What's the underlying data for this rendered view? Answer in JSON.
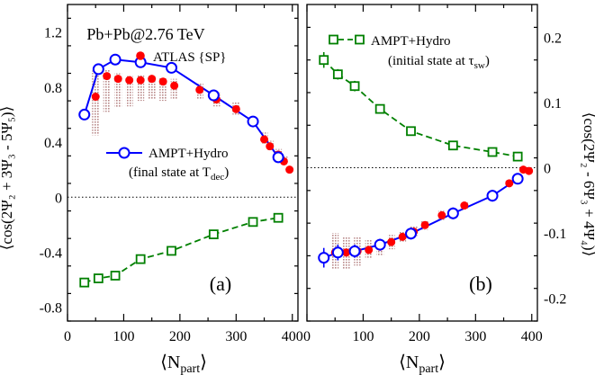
{
  "x_tick_labels": [
    "0",
    "100",
    "200",
    "300",
    "400"
  ],
  "colors": {
    "atlas": "#ff0000",
    "final": "#0000ff",
    "initial": "#008000",
    "band": "#b98a8a"
  },
  "chart_data": [
    {
      "type": "scatter",
      "panel_label": "(a)",
      "system": "Pb+Pb@2.76 TeV",
      "xlabel": "⟨N",
      "xlabel_sub": "part",
      "xlabel_end": "⟩",
      "ylabel": "⟨cos(2Ψ₂ + 3Ψ₃ - 5Ψ₅)⟩",
      "xlim": [
        0,
        410
      ],
      "ylim": [
        -0.9,
        1.4
      ],
      "y_ticks": [
        -0.8,
        -0.4,
        0,
        0.4,
        0.8,
        1.2
      ],
      "y_tick_labels": [
        "-0.8",
        "-0.4",
        "0",
        "0.4",
        "0.8",
        "1.2"
      ],
      "zero_line": true,
      "legend": [
        {
          "series": "atlas",
          "text": "ATLAS {SP}"
        },
        {
          "series": "final",
          "text": "AMPT+Hydro",
          "text2": "(final state at T",
          "text2_sub": "dec",
          "text2_end": ")"
        }
      ],
      "series": [
        {
          "name": "ATLAS {SP}",
          "key": "atlas",
          "marker": "dot",
          "x": [
            50,
            70,
            90,
            110,
            130,
            150,
            170,
            190,
            235,
            265,
            300,
            350,
            360,
            375,
            385,
            395
          ],
          "y": [
            0.73,
            0.88,
            0.86,
            0.85,
            0.85,
            0.86,
            0.84,
            0.81,
            0.78,
            0.71,
            0.64,
            0.42,
            0.37,
            0.31,
            0.26,
            0.2
          ],
          "sys_low": [
            0.45,
            0.62,
            0.65,
            0.66,
            0.7,
            0.71,
            0.7,
            0.71,
            0.71,
            0.66,
            0.6,
            0.39,
            0.34,
            0.29,
            0.25,
            0.19
          ],
          "sys_high": [
            0.92,
            0.93,
            0.9,
            0.88,
            0.89,
            0.88,
            0.87,
            0.86,
            0.83,
            0.76,
            0.69,
            0.47,
            0.41,
            0.35,
            0.3,
            0.22
          ]
        },
        {
          "name": "AMPT+Hydro",
          "key": "final",
          "marker": "circle",
          "x": [
            30,
            55,
            85,
            130,
            185,
            260,
            330,
            375
          ],
          "y": [
            0.6,
            0.93,
            1.0,
            0.98,
            0.94,
            0.74,
            0.55,
            0.29
          ],
          "err": [
            0.04,
            0.03,
            0.02,
            0.02,
            0.02,
            0.02,
            0.02,
            0.03
          ]
        },
        {
          "name": "",
          "key": "initial",
          "marker": "square",
          "x": [
            30,
            55,
            85,
            130,
            185,
            260,
            330,
            375
          ],
          "y": [
            -0.62,
            -0.59,
            -0.57,
            -0.45,
            -0.39,
            -0.27,
            -0.18,
            -0.15
          ],
          "err": [
            0.02,
            0.02,
            0.02,
            0.01,
            0.01,
            0.01,
            0.01,
            0.01
          ]
        }
      ]
    },
    {
      "type": "scatter",
      "panel_label": "(b)",
      "xlabel": "⟨N",
      "xlabel_sub": "part",
      "xlabel_end": "⟩",
      "ylabel": "⟨cos(2Ψ₂ - 6Ψ₃ + 4Ψ₄)⟩",
      "xlim": [
        0,
        410
      ],
      "ylim": [
        -0.235,
        0.25
      ],
      "y_ticks": [
        -0.2,
        -0.1,
        0,
        0.1,
        0.2
      ],
      "y_tick_labels": [
        "-0.2",
        "-0.1",
        "0",
        "0.1",
        "0.2"
      ],
      "zero_line": true,
      "legend": [
        {
          "series": "initial",
          "text": "AMPT+Hydro",
          "text2": "(initial state at τ",
          "text2_sub": "sw",
          "text2_end": ")"
        }
      ],
      "series": [
        {
          "name": "AMPT+Hydro",
          "key": "initial",
          "marker": "square",
          "x": [
            30,
            55,
            85,
            130,
            185,
            260,
            330,
            375
          ],
          "y": [
            0.165,
            0.143,
            0.125,
            0.09,
            0.056,
            0.034,
            0.024,
            0.017
          ],
          "err": [
            0.012,
            0.008,
            0.008,
            0.006,
            0.005,
            0.005,
            0.005,
            0.004
          ]
        },
        {
          "name": "ATLAS {SP}",
          "key": "atlas",
          "marker": "dot",
          "x": [
            50,
            70,
            90,
            110,
            130,
            150,
            170,
            190,
            210,
            240,
            280,
            330,
            360,
            375,
            385,
            395
          ],
          "y": [
            -0.13,
            -0.13,
            -0.128,
            -0.126,
            -0.121,
            -0.114,
            -0.106,
            -0.098,
            -0.088,
            -0.073,
            -0.058,
            -0.043,
            -0.024,
            -0.015,
            -0.003,
            -0.005
          ],
          "sys_low": [
            -0.155,
            -0.155,
            -0.15,
            -0.14,
            -0.135,
            -0.125,
            -0.115,
            -0.105,
            -0.095,
            -0.08,
            -0.063,
            -0.047,
            -0.028,
            -0.018,
            -0.006,
            -0.008
          ],
          "sys_high": [
            -0.1,
            -0.105,
            -0.105,
            -0.11,
            -0.11,
            -0.103,
            -0.097,
            -0.09,
            -0.081,
            -0.066,
            -0.053,
            -0.039,
            -0.02,
            -0.012,
            0.0,
            -0.002
          ]
        },
        {
          "name": "",
          "key": "final",
          "marker": "circle",
          "x": [
            30,
            55,
            85,
            130,
            185,
            260,
            330,
            375
          ],
          "y": [
            -0.138,
            -0.13,
            -0.128,
            -0.118,
            -0.101,
            -0.07,
            -0.043,
            -0.017
          ],
          "err": [
            0.015,
            0.012,
            0.01,
            0.009,
            0.009,
            0.009,
            0.009,
            0.008
          ]
        }
      ]
    }
  ]
}
